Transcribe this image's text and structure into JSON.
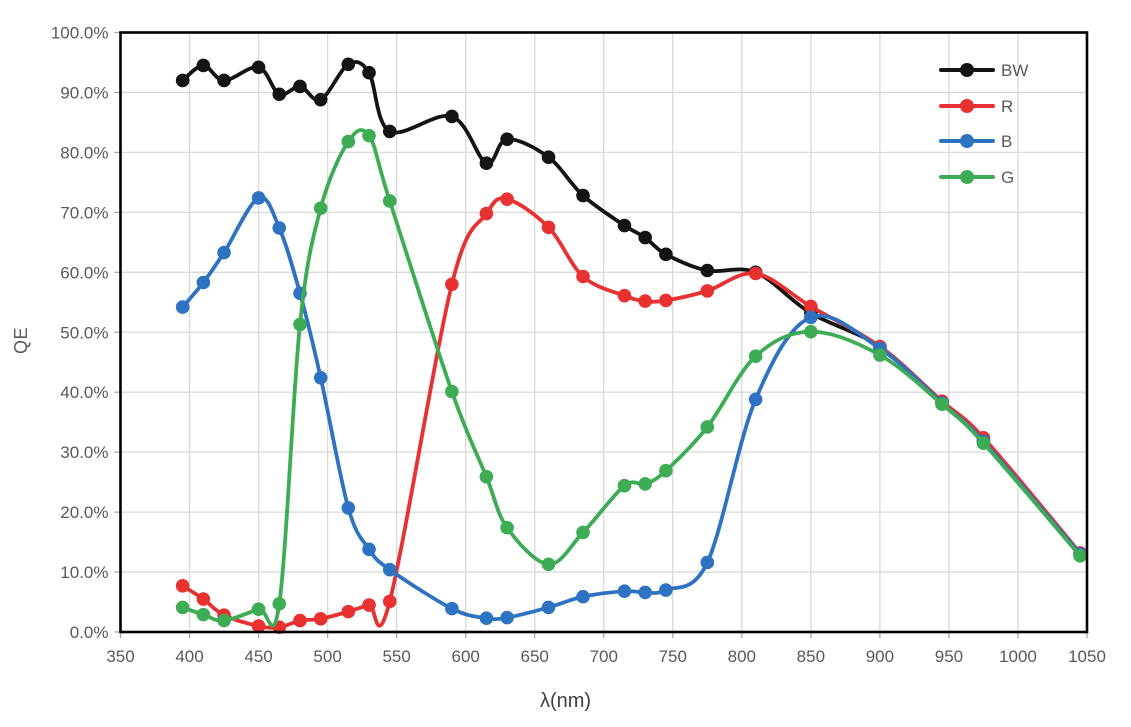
{
  "chart_data": {
    "type": "line",
    "title": "",
    "xlabel": "λ(nm)",
    "ylabel": "QE",
    "xlim": [
      350,
      1050
    ],
    "ylim": [
      0,
      100
    ],
    "grid": true,
    "legend_position": "top-right-inside",
    "x_ticks": [
      350,
      400,
      450,
      500,
      550,
      600,
      650,
      700,
      750,
      800,
      850,
      900,
      950,
      1000,
      1050
    ],
    "x_tick_labels": [
      "350",
      "400",
      "450",
      "500",
      "550",
      "600",
      "650",
      "700",
      "750",
      "800",
      "850",
      "900",
      "950",
      "1000",
      "1050"
    ],
    "y_ticks": [
      0,
      10,
      20,
      30,
      40,
      50,
      60,
      70,
      80,
      90,
      100
    ],
    "y_tick_labels": [
      "0.0%",
      "10.0%",
      "20.0%",
      "30.0%",
      "40.0%",
      "50.0%",
      "60.0%",
      "70.0%",
      "80.0%",
      "90.0%",
      "100.0%"
    ],
    "y_unit": "percent QE",
    "x_unit": "nm wavelength",
    "series": [
      {
        "name": "BW",
        "color": "#141414",
        "points": [
          [
            395,
            92.0
          ],
          [
            410,
            94.5
          ],
          [
            425,
            92.0
          ],
          [
            450,
            94.2
          ],
          [
            465,
            89.7
          ],
          [
            480,
            91.0
          ],
          [
            495,
            88.8
          ],
          [
            515,
            94.7
          ],
          [
            530,
            93.3
          ],
          [
            545,
            83.5
          ],
          [
            590,
            86.0
          ],
          [
            615,
            78.2
          ],
          [
            630,
            82.2
          ],
          [
            660,
            79.2
          ],
          [
            685,
            72.8
          ],
          [
            715,
            67.8
          ],
          [
            730,
            65.8
          ],
          [
            745,
            63.0
          ],
          [
            775,
            60.3
          ],
          [
            810,
            60.0
          ],
          [
            850,
            53.2
          ],
          [
            900,
            47.6
          ],
          [
            945,
            38.3
          ],
          [
            975,
            32.0
          ],
          [
            1045,
            13.0
          ]
        ]
      },
      {
        "name": "R",
        "color": "#e83131",
        "points": [
          [
            395,
            7.7
          ],
          [
            410,
            5.5
          ],
          [
            425,
            2.8
          ],
          [
            450,
            1.0
          ],
          [
            465,
            0.8
          ],
          [
            480,
            1.9
          ],
          [
            495,
            2.2
          ],
          [
            515,
            3.4
          ],
          [
            530,
            4.5
          ],
          [
            545,
            5.1
          ],
          [
            590,
            58.0
          ],
          [
            615,
            69.8
          ],
          [
            630,
            72.2
          ],
          [
            660,
            67.5
          ],
          [
            685,
            59.3
          ],
          [
            715,
            56.1
          ],
          [
            730,
            55.2
          ],
          [
            745,
            55.3
          ],
          [
            775,
            56.9
          ],
          [
            810,
            59.8
          ],
          [
            850,
            54.3
          ],
          [
            900,
            47.6
          ],
          [
            945,
            38.5
          ],
          [
            975,
            32.4
          ],
          [
            1045,
            13.2
          ]
        ]
      },
      {
        "name": "B",
        "color": "#2d73c2",
        "points": [
          [
            395,
            54.2
          ],
          [
            410,
            58.3
          ],
          [
            425,
            63.3
          ],
          [
            450,
            72.4
          ],
          [
            465,
            67.4
          ],
          [
            480,
            56.5
          ],
          [
            495,
            42.4
          ],
          [
            515,
            20.7
          ],
          [
            530,
            13.8
          ],
          [
            545,
            10.4
          ],
          [
            590,
            3.9
          ],
          [
            615,
            2.3
          ],
          [
            630,
            2.4
          ],
          [
            660,
            4.1
          ],
          [
            685,
            5.9
          ],
          [
            715,
            6.8
          ],
          [
            730,
            6.6
          ],
          [
            745,
            7.0
          ],
          [
            775,
            11.6
          ],
          [
            810,
            38.8
          ],
          [
            850,
            52.5
          ],
          [
            900,
            47.3
          ],
          [
            945,
            38.2
          ],
          [
            975,
            31.8
          ],
          [
            1045,
            13.0
          ]
        ]
      },
      {
        "name": "G",
        "color": "#3eac55",
        "points": [
          [
            395,
            4.1
          ],
          [
            410,
            2.9
          ],
          [
            425,
            1.9
          ],
          [
            450,
            3.8
          ],
          [
            465,
            4.7
          ],
          [
            480,
            51.3
          ],
          [
            495,
            70.7
          ],
          [
            515,
            81.8
          ],
          [
            530,
            82.8
          ],
          [
            545,
            71.9
          ],
          [
            590,
            40.1
          ],
          [
            615,
            25.9
          ],
          [
            630,
            17.4
          ],
          [
            660,
            11.3
          ],
          [
            685,
            16.6
          ],
          [
            715,
            24.4
          ],
          [
            730,
            24.7
          ],
          [
            745,
            26.9
          ],
          [
            775,
            34.2
          ],
          [
            810,
            46.0
          ],
          [
            850,
            50.1
          ],
          [
            900,
            46.2
          ],
          [
            945,
            38.0
          ],
          [
            975,
            31.5
          ],
          [
            1045,
            12.7
          ]
        ]
      }
    ],
    "style": {
      "grid_color": "#d9d9d9",
      "border_color": "#000000",
      "tick_color": "#a6a6a6",
      "tick_label_color": "#595959",
      "background": "#ffffff"
    }
  }
}
